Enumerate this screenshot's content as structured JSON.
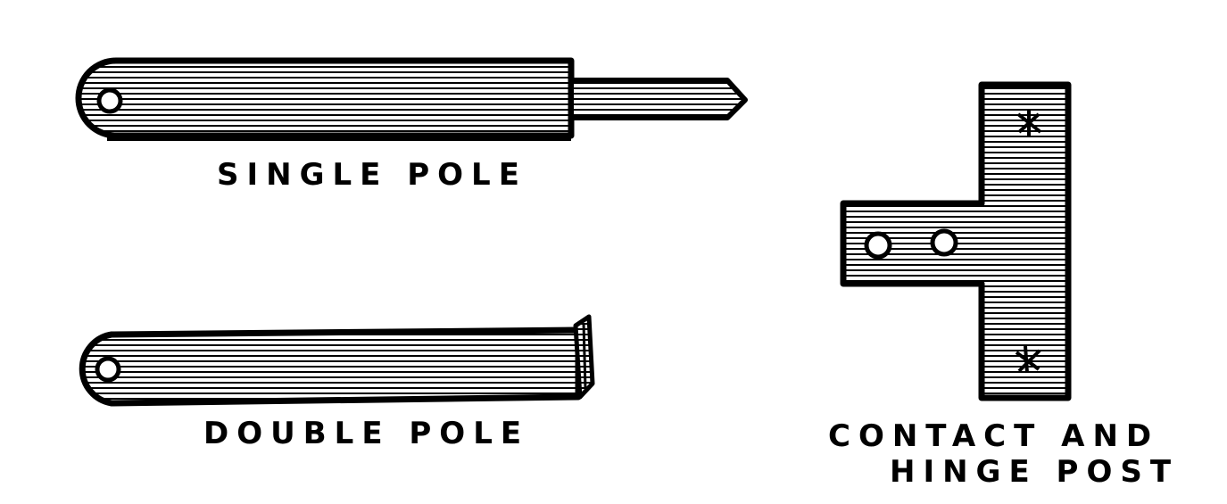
{
  "figure": {
    "ink_color": "#000000",
    "paper_color": "#ffffff",
    "parts": [
      {
        "id": "single-pole",
        "label": "SINGLE POLE"
      },
      {
        "id": "double-pole",
        "label": "DOUBLE POLE"
      },
      {
        "id": "contact-hinge-post",
        "label_line1": "CONTACT AND",
        "label_line2": "HINGE POST"
      }
    ]
  }
}
